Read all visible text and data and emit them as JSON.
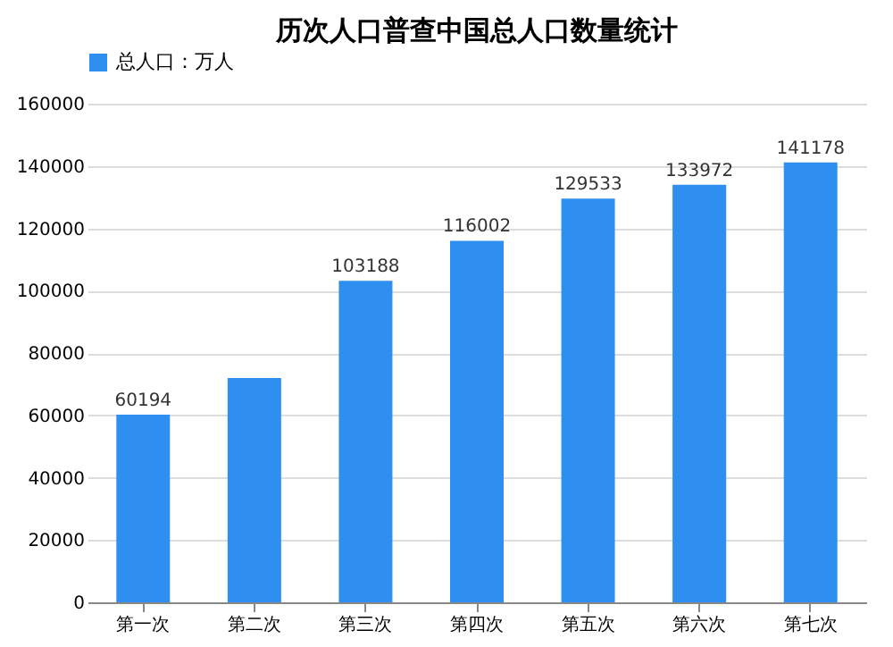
{
  "chart_data": {
    "type": "bar",
    "title": "历次人口普查中国总人口数量统计",
    "categories": [
      "第一次",
      "第二次",
      "第三次",
      "第四次",
      "第五次",
      "第六次",
      "第七次"
    ],
    "series": [
      {
        "name": "总人口：万人",
        "color": "#2e8ff0",
        "values": [
          60194,
          72000,
          103188,
          116002,
          129533,
          133972,
          141178
        ],
        "value_labels": [
          "60194",
          null,
          "103188",
          "116002",
          "129533",
          "133972",
          "141178"
        ]
      }
    ],
    "ylim": [
      0,
      160000
    ],
    "yticks": [
      0,
      20000,
      40000,
      60000,
      80000,
      100000,
      120000,
      140000,
      160000
    ],
    "grid": "y",
    "legend": "top"
  }
}
